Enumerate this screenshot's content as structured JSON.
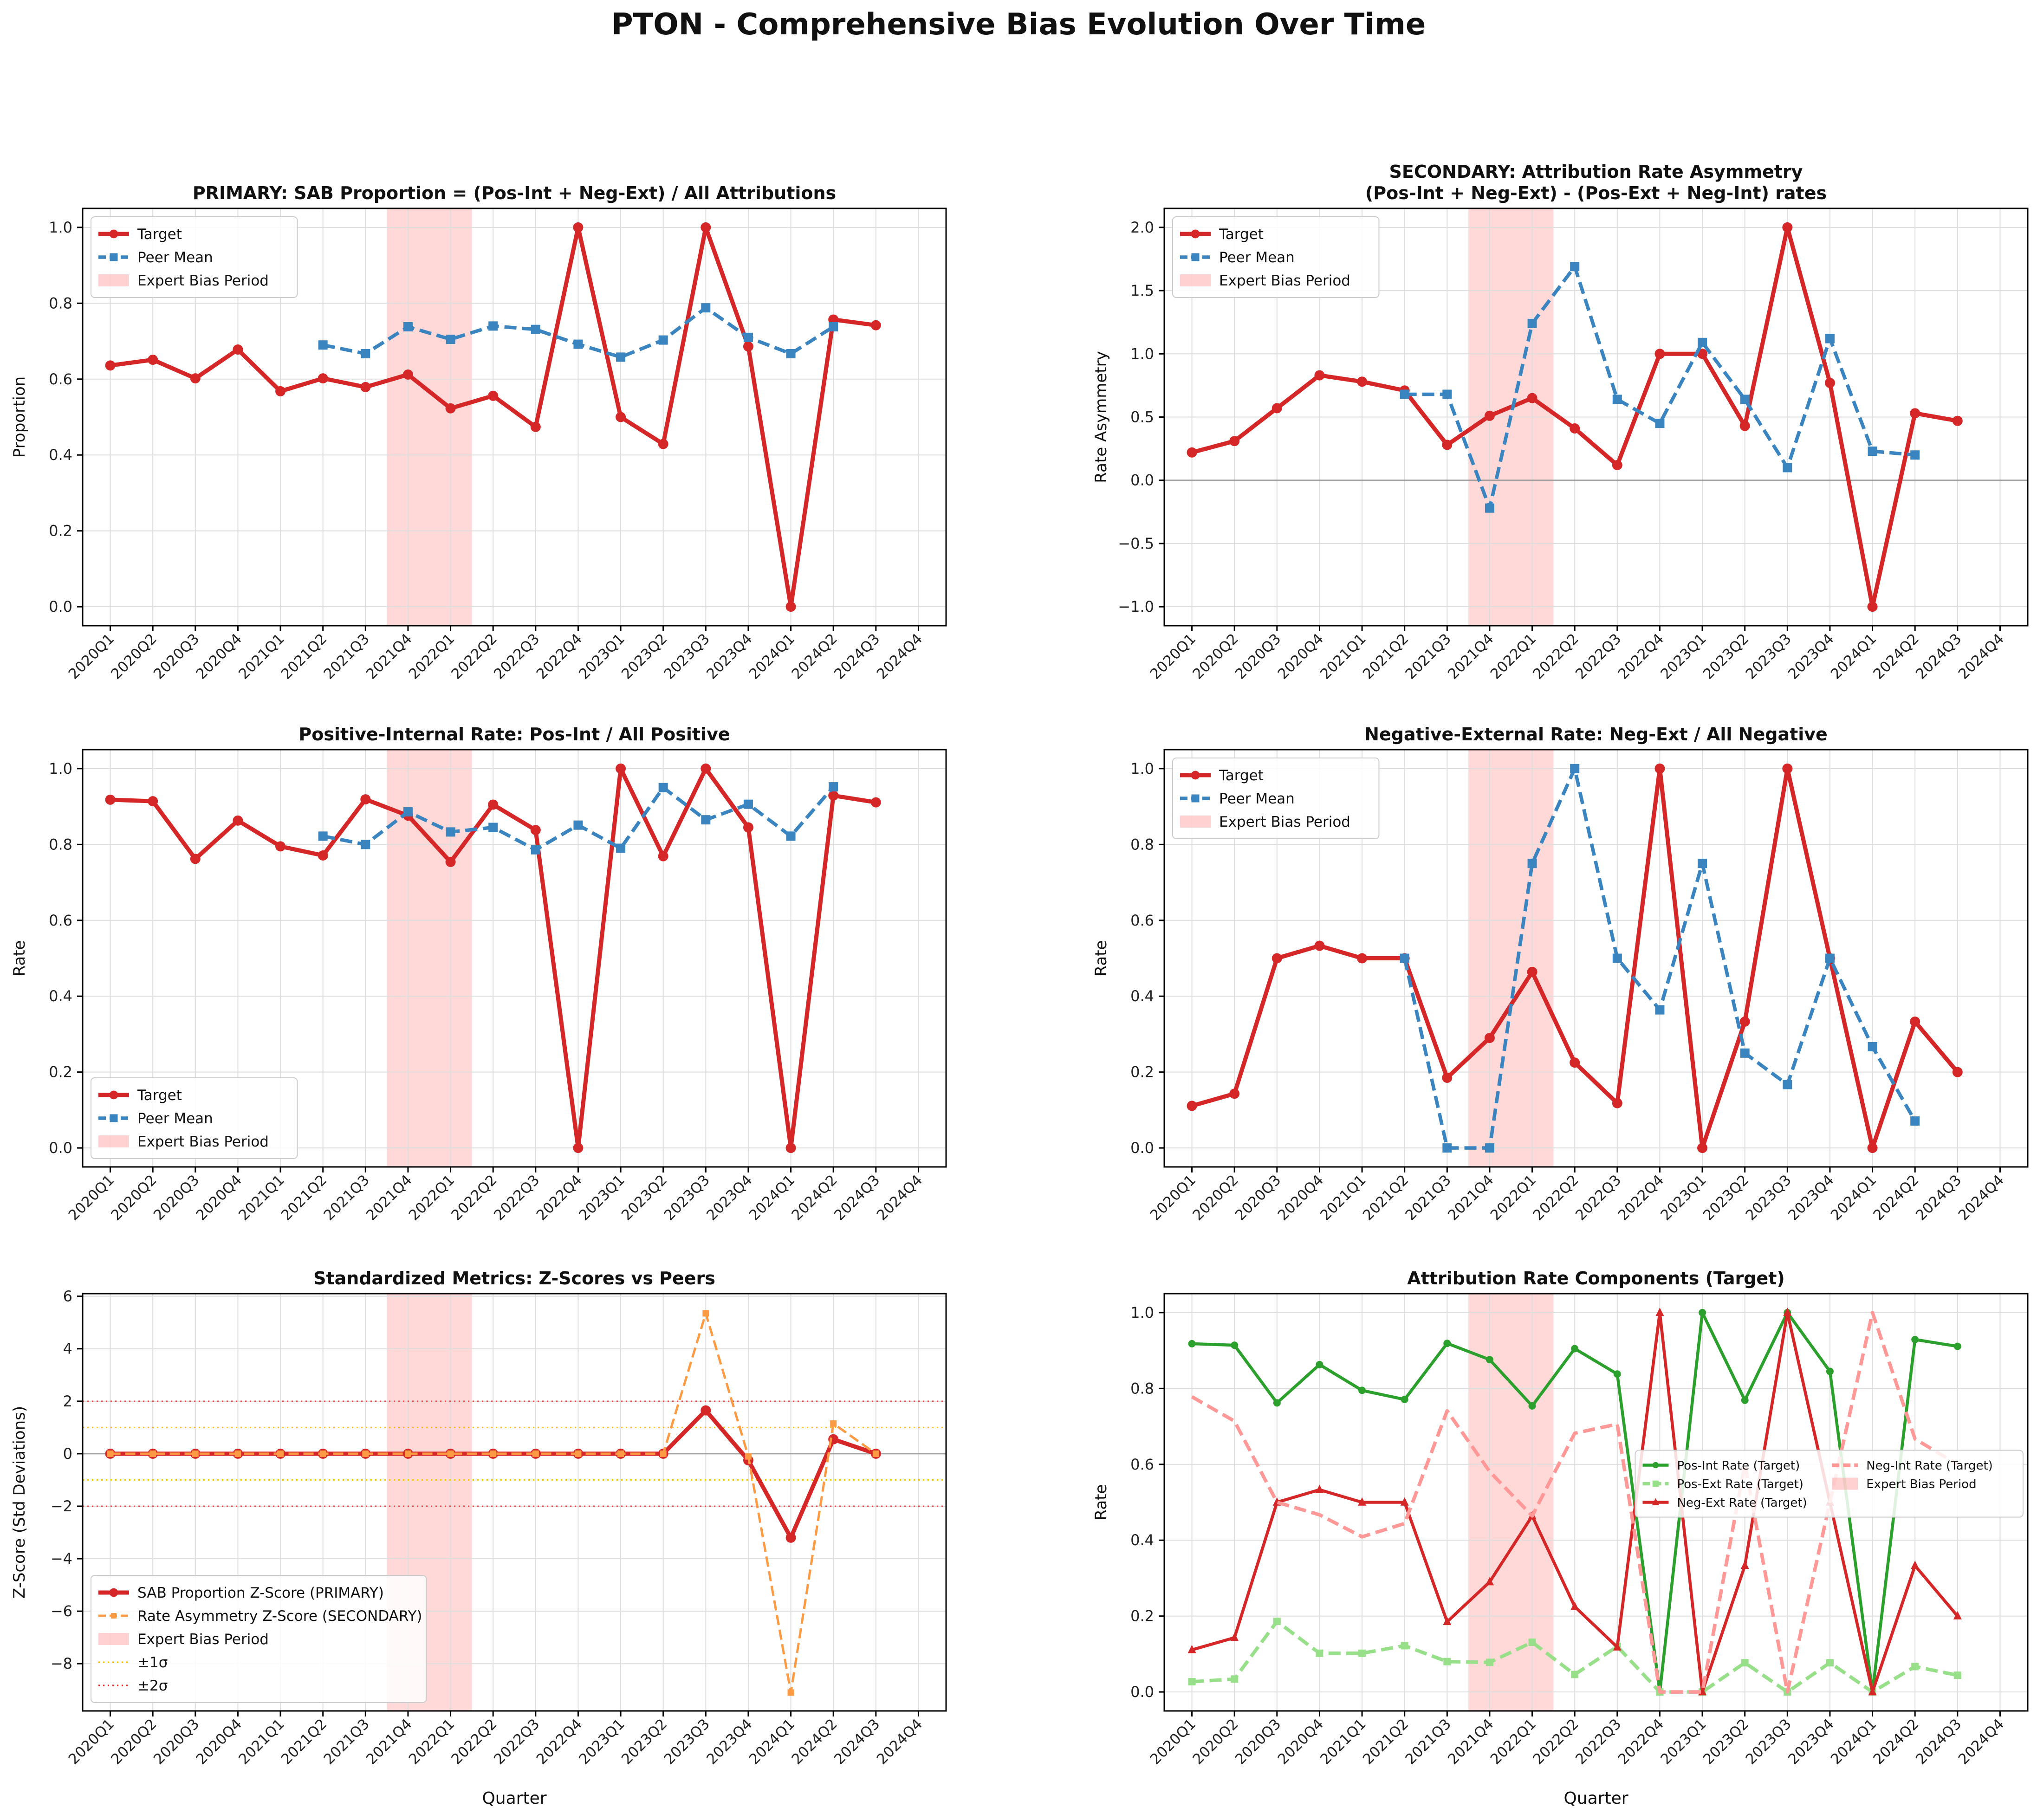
{
  "figure": {
    "title": "PTON - Comprehensive Bias Evolution Over Time"
  },
  "quarters": [
    "2020Q1",
    "2020Q2",
    "2020Q3",
    "2020Q4",
    "2021Q1",
    "2021Q2",
    "2021Q3",
    "2021Q4",
    "2022Q1",
    "2022Q2",
    "2022Q3",
    "2022Q4",
    "2023Q1",
    "2023Q2",
    "2023Q3",
    "2023Q4",
    "2024Q1",
    "2024Q2",
    "2024Q3",
    "2024Q4"
  ],
  "colors": {
    "target": "#d62728",
    "peer": "#3a84c0",
    "shade": "#ff9999",
    "orange": "#fd9a44",
    "green": "#2ca02c",
    "lightgreen": "#98df8a",
    "pink": "#ff9896",
    "sigma1": "#f5b800",
    "sigma2": "#e03030"
  },
  "chart_data": [
    {
      "type": "line",
      "title": "PRIMARY: SAB Proportion = (Pos-Int + Neg-Ext) / All Attributions",
      "xlabel": "",
      "ylabel": "Proportion",
      "ylim": [
        -0.05,
        1.05
      ],
      "yticks": [
        0,
        0.2,
        0.4,
        0.6,
        0.8,
        1.0
      ],
      "tick_decimals": 1,
      "grid": true,
      "legend_position": "upper-left",
      "shade_range": [
        "2021Q4",
        "2022Q1"
      ],
      "series": [
        {
          "name": "Target",
          "style": "target",
          "values": [
            0.636,
            0.651,
            0.602,
            0.678,
            0.568,
            0.602,
            0.579,
            0.612,
            0.523,
            0.556,
            0.474,
            1.0,
            0.5,
            0.429,
            1.0,
            0.686,
            0.0,
            0.757,
            0.742,
            null
          ]
        },
        {
          "name": "Peer Mean",
          "style": "peer",
          "values": [
            null,
            null,
            null,
            null,
            null,
            0.69,
            0.667,
            0.738,
            0.705,
            0.74,
            0.731,
            0.692,
            0.658,
            0.703,
            0.788,
            0.71,
            0.667,
            0.738,
            null,
            null
          ]
        }
      ],
      "legend": [
        {
          "label": "Target",
          "kind": "target"
        },
        {
          "label": "Peer Mean",
          "kind": "peer"
        },
        {
          "label": "Expert Bias Period",
          "kind": "shade"
        }
      ]
    },
    {
      "type": "line",
      "title": [
        "SECONDARY: Attribution Rate Asymmetry",
        "(Pos-Int + Neg-Ext) - (Pos-Ext + Neg-Int) rates"
      ],
      "xlabel": "",
      "ylabel": "Rate Asymmetry",
      "ylim": [
        -1.15,
        2.15
      ],
      "yticks": [
        -1.0,
        -0.5,
        0.0,
        0.5,
        1.0,
        1.5,
        2.0
      ],
      "tick_decimals": 1,
      "grid": true,
      "legend_position": "upper-left",
      "zero_line": true,
      "shade_range": [
        "2021Q4",
        "2022Q1"
      ],
      "series": [
        {
          "name": "Target",
          "style": "target",
          "values": [
            0.22,
            0.31,
            0.57,
            0.83,
            0.78,
            0.71,
            0.28,
            0.51,
            0.65,
            0.41,
            0.12,
            1.0,
            1.0,
            0.43,
            2.0,
            0.77,
            -1.0,
            0.53,
            0.47,
            null
          ]
        },
        {
          "name": "Peer Mean",
          "style": "peer",
          "values": [
            null,
            null,
            null,
            null,
            null,
            0.68,
            0.68,
            -0.22,
            1.24,
            1.69,
            0.64,
            0.45,
            1.09,
            0.64,
            0.1,
            1.12,
            0.23,
            0.2,
            null,
            null
          ]
        }
      ],
      "legend": [
        {
          "label": "Target",
          "kind": "target"
        },
        {
          "label": "Peer Mean",
          "kind": "peer"
        },
        {
          "label": "Expert Bias Period",
          "kind": "shade"
        }
      ]
    },
    {
      "type": "line",
      "title": "Positive-Internal Rate: Pos-Int / All Positive",
      "xlabel": "",
      "ylabel": "Rate",
      "ylim": [
        -0.05,
        1.05
      ],
      "yticks": [
        0,
        0.2,
        0.4,
        0.6,
        0.8,
        1.0
      ],
      "tick_decimals": 1,
      "grid": true,
      "legend_position": "lower-left",
      "shade_range": [
        "2021Q4",
        "2022Q1"
      ],
      "series": [
        {
          "name": "Target",
          "style": "target",
          "values": [
            0.918,
            0.914,
            0.762,
            0.863,
            0.795,
            0.771,
            0.919,
            0.876,
            0.754,
            0.905,
            0.838,
            0.0,
            1.0,
            0.769,
            1.0,
            0.845,
            0.0,
            0.929,
            0.911,
            null
          ]
        },
        {
          "name": "Peer Mean",
          "style": "peer",
          "values": [
            null,
            null,
            null,
            null,
            null,
            0.822,
            0.8,
            0.886,
            0.833,
            0.845,
            0.786,
            0.851,
            0.79,
            0.95,
            0.865,
            0.906,
            0.822,
            0.952,
            null,
            null
          ]
        }
      ],
      "legend": [
        {
          "label": "Target",
          "kind": "target"
        },
        {
          "label": "Peer Mean",
          "kind": "peer"
        },
        {
          "label": "Expert Bias Period",
          "kind": "shade"
        }
      ]
    },
    {
      "type": "line",
      "title": "Negative-External Rate: Neg-Ext / All Negative",
      "xlabel": "",
      "ylabel": "Rate",
      "ylim": [
        -0.05,
        1.05
      ],
      "yticks": [
        0,
        0.2,
        0.4,
        0.6,
        0.8,
        1.0
      ],
      "tick_decimals": 1,
      "grid": true,
      "legend_position": "upper-left",
      "shade_range": [
        "2021Q4",
        "2022Q1"
      ],
      "series": [
        {
          "name": "Target",
          "style": "target",
          "values": [
            0.111,
            0.143,
            0.5,
            0.533,
            0.5,
            0.5,
            0.185,
            0.29,
            0.464,
            0.225,
            0.118,
            1.0,
            0.0,
            0.333,
            1.0,
            0.5,
            0.0,
            0.333,
            0.2,
            null
          ]
        },
        {
          "name": "Peer Mean",
          "style": "peer",
          "values": [
            null,
            null,
            null,
            null,
            null,
            0.5,
            0.0,
            0.0,
            0.75,
            1.0,
            0.5,
            0.364,
            0.75,
            0.25,
            0.167,
            0.5,
            0.267,
            0.071,
            null,
            null
          ]
        }
      ],
      "legend": [
        {
          "label": "Target",
          "kind": "target"
        },
        {
          "label": "Peer Mean",
          "kind": "peer"
        },
        {
          "label": "Expert Bias Period",
          "kind": "shade"
        }
      ]
    },
    {
      "type": "line",
      "title": "Standardized Metrics: Z-Scores vs Peers",
      "xlabel": "Quarter",
      "ylabel": "Z-Score (Std Deviations)",
      "ylim": [
        -9.8,
        6.1
      ],
      "yticks": [
        -8,
        -6,
        -4,
        -2,
        0,
        2,
        4,
        6
      ],
      "tick_decimals": 0,
      "grid": true,
      "legend_position": "lower-left",
      "zero_line": true,
      "hlines": [
        {
          "y": 1,
          "style": "sigma1"
        },
        {
          "y": -1,
          "style": "sigma1"
        },
        {
          "y": 2,
          "style": "sigma2"
        },
        {
          "y": -2,
          "style": "sigma2"
        }
      ],
      "shade_range": [
        "2021Q4",
        "2022Q1"
      ],
      "series": [
        {
          "name": "SAB Proportion Z-Score (PRIMARY)",
          "style": "target",
          "values": [
            0,
            0,
            0,
            0,
            0,
            0,
            0,
            0,
            0,
            0,
            0,
            0,
            0,
            0,
            1.65,
            -0.25,
            -3.2,
            0.55,
            0.0,
            null
          ]
        },
        {
          "name": "Rate Asymmetry Z-Score (SECONDARY)",
          "style": "orange",
          "values": [
            0,
            0,
            0,
            0,
            0,
            0,
            0,
            0,
            0,
            0,
            0,
            0,
            0,
            0,
            5.35,
            -0.1,
            -9.1,
            1.15,
            0.0,
            null
          ]
        }
      ],
      "legend": [
        {
          "label": "SAB Proportion Z-Score (PRIMARY)",
          "kind": "target"
        },
        {
          "label": "Rate Asymmetry Z-Score (SECONDARY)",
          "kind": "orange"
        },
        {
          "label": "Expert Bias Period",
          "kind": "shade"
        },
        {
          "label": "±1σ",
          "kind": "sigma1"
        },
        {
          "label": "±2σ",
          "kind": "sigma2"
        }
      ]
    },
    {
      "type": "line",
      "title": "Attribution Rate Components (Target)",
      "xlabel": "Quarter",
      "ylabel": "Rate",
      "ylim": [
        -0.05,
        1.05
      ],
      "yticks": [
        0,
        0.2,
        0.4,
        0.6,
        0.8,
        1.0
      ],
      "tick_decimals": 1,
      "grid": true,
      "legend_position": "center-right",
      "shade_range": [
        "2021Q4",
        "2022Q1"
      ],
      "series": [
        {
          "name": "Pos-Int Rate (Target)",
          "style": "green",
          "values": [
            0.918,
            0.914,
            0.762,
            0.863,
            0.795,
            0.771,
            0.919,
            0.876,
            0.754,
            0.905,
            0.838,
            0.0,
            1.0,
            0.769,
            1.0,
            0.845,
            0.0,
            0.929,
            0.911,
            null
          ]
        },
        {
          "name": "Pos-Ext Rate (Target)",
          "style": "lightgreen",
          "values": [
            0.027,
            0.034,
            0.186,
            0.102,
            0.102,
            0.122,
            0.08,
            0.078,
            0.131,
            0.046,
            0.12,
            0.0,
            0.0,
            0.077,
            0.0,
            0.077,
            0.0,
            0.067,
            0.044,
            null
          ]
        },
        {
          "name": "Neg-Ext Rate (Target)",
          "style": "red",
          "values": [
            0.111,
            0.143,
            0.5,
            0.533,
            0.5,
            0.5,
            0.185,
            0.29,
            0.464,
            0.225,
            0.118,
            1.0,
            0.0,
            0.333,
            1.0,
            0.5,
            0.0,
            0.333,
            0.2,
            null
          ]
        },
        {
          "name": "Neg-Int Rate (Target)",
          "style": "pink",
          "values": [
            0.778,
            0.714,
            0.5,
            0.467,
            0.409,
            0.444,
            0.741,
            0.581,
            0.464,
            0.682,
            0.706,
            0.0,
            0.0,
            0.6,
            0.0,
            0.5,
            1.0,
            0.667,
            0.6,
            null
          ]
        }
      ],
      "legend": [
        {
          "label": "Pos-Int Rate (Target)",
          "kind": "green"
        },
        {
          "label": "Neg-Int Rate (Target)",
          "kind": "pink"
        },
        {
          "label": "Pos-Ext Rate (Target)",
          "kind": "lightgreen"
        },
        {
          "label": "Expert Bias Period",
          "kind": "shade"
        },
        {
          "label": "Neg-Ext Rate (Target)",
          "kind": "red"
        }
      ]
    }
  ]
}
